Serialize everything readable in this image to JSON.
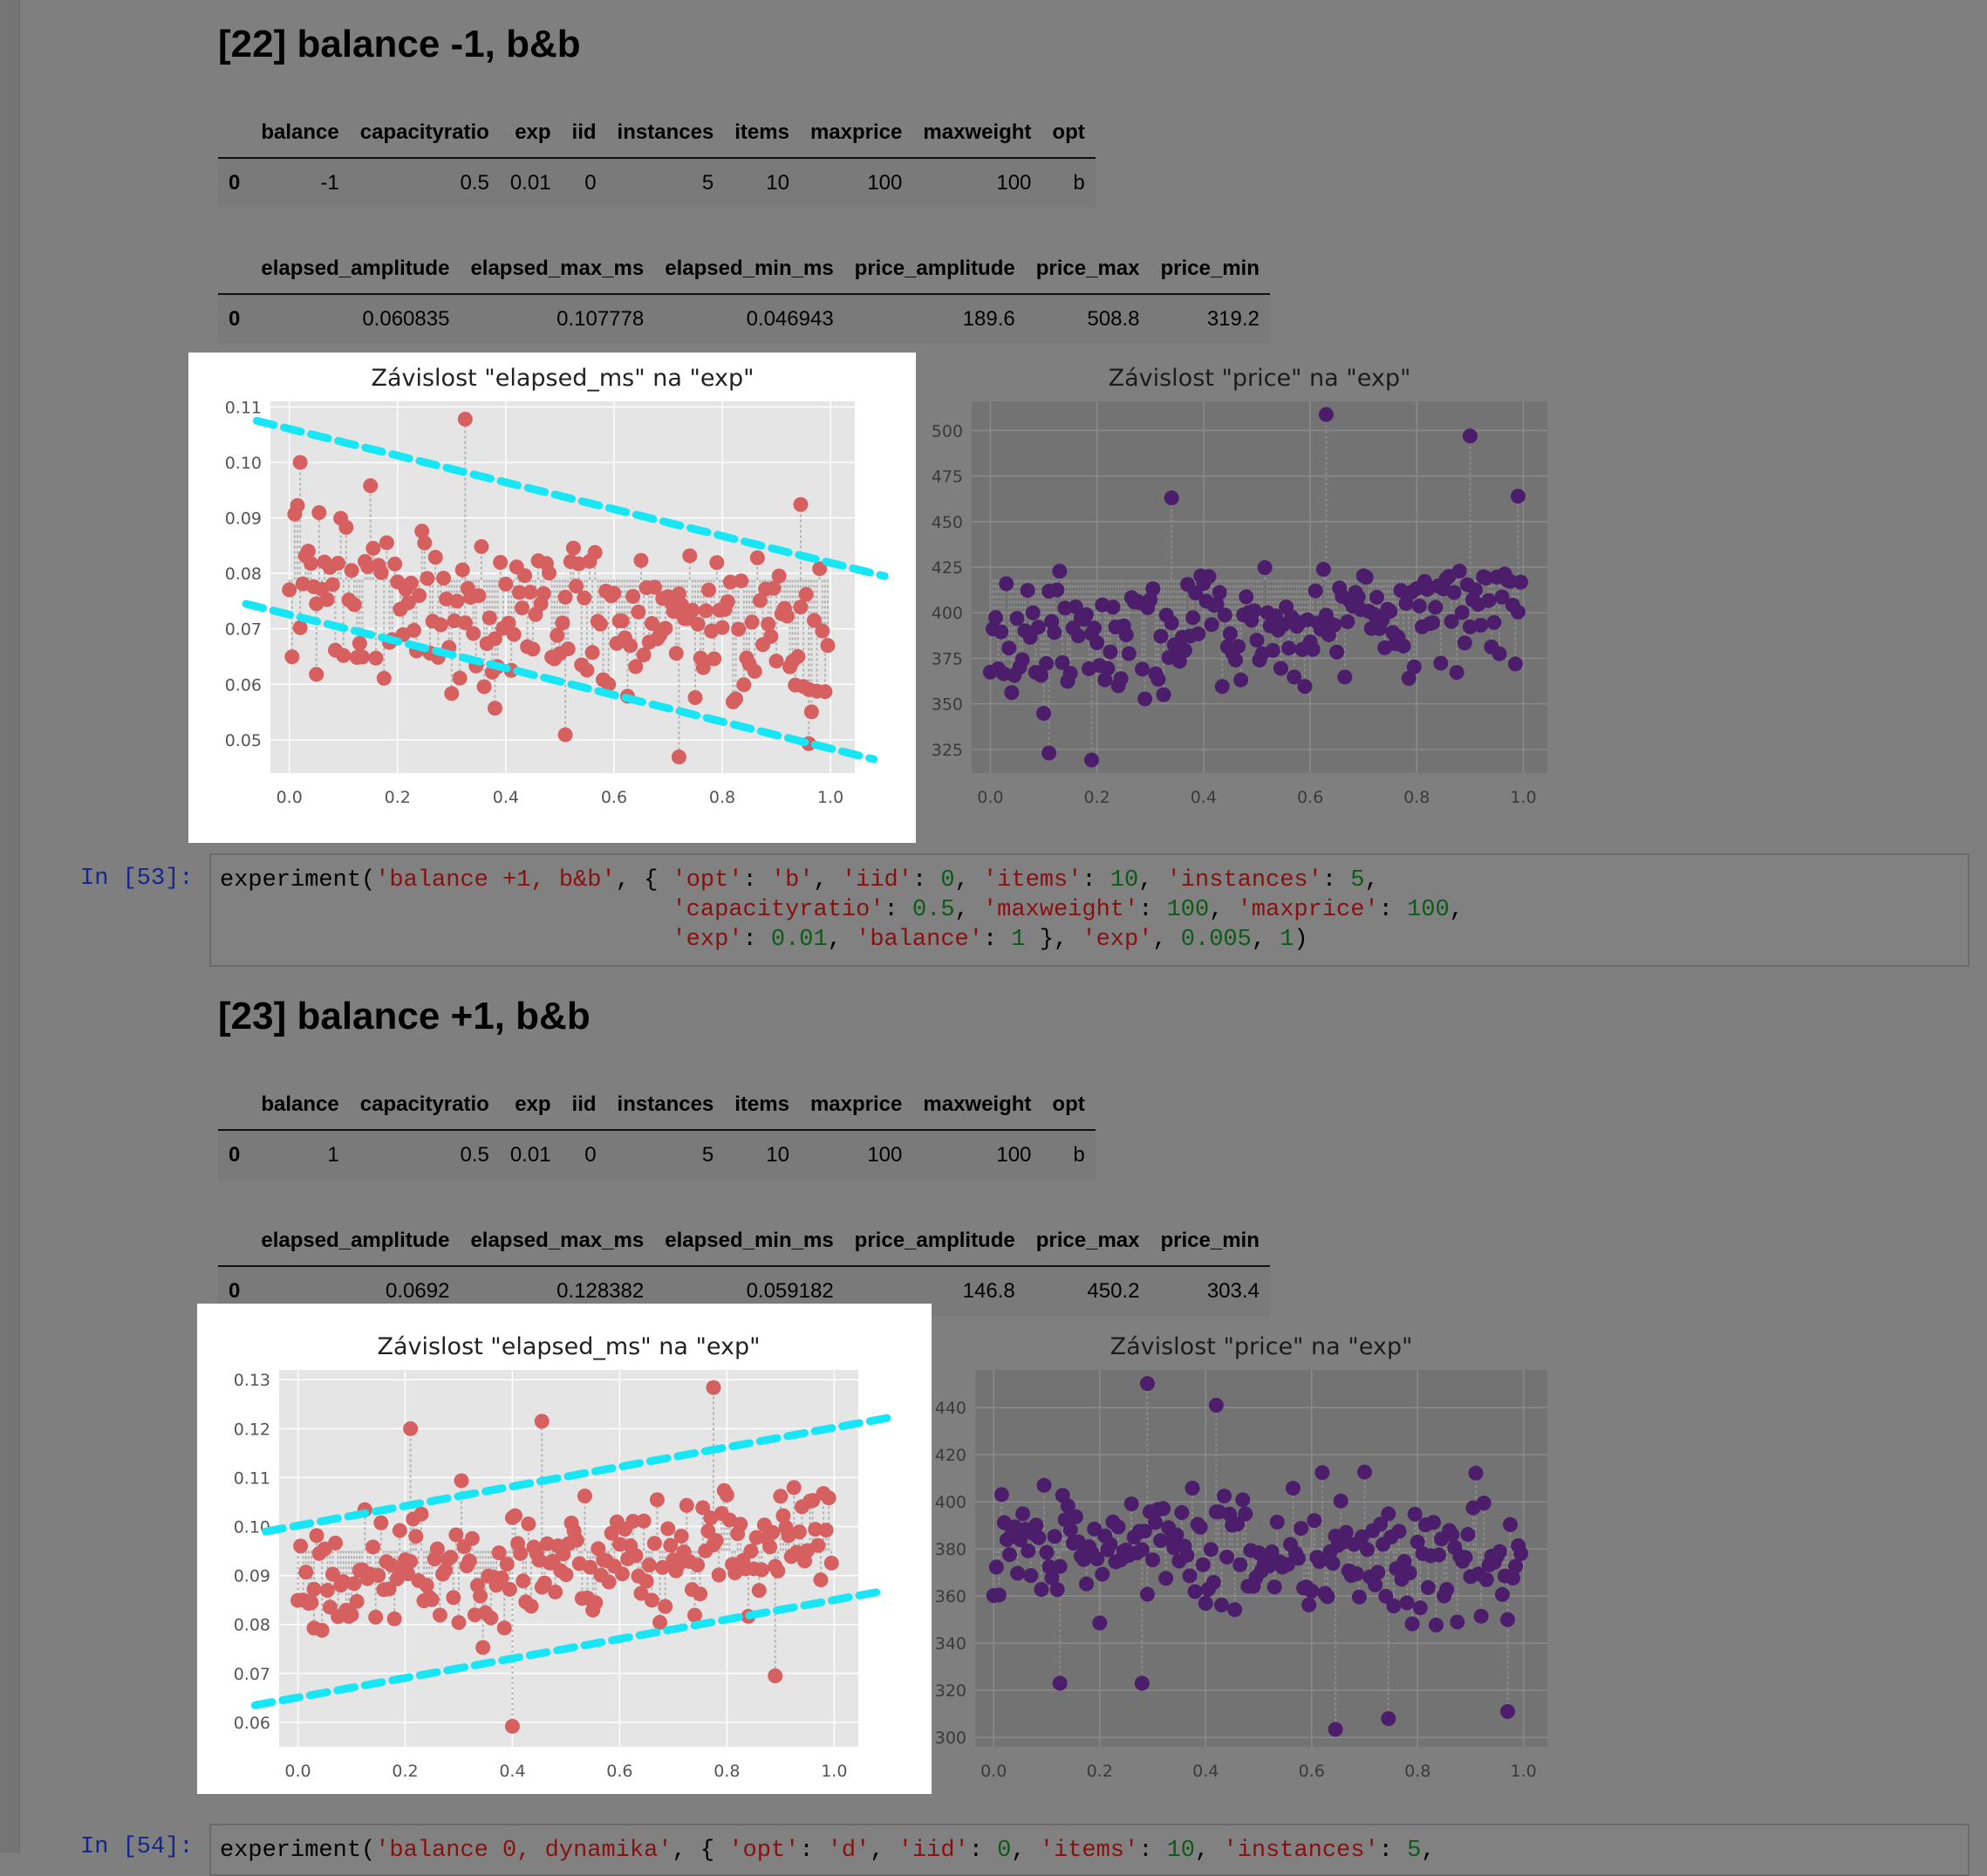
{
  "sections": [
    {
      "heading": "[22] balance -1, b&b",
      "params_table": {
        "columns": [
          "",
          "balance",
          "capacityratio",
          "exp",
          "iid",
          "instances",
          "items",
          "maxprice",
          "maxweight",
          "opt"
        ],
        "rows": [
          [
            "0",
            "-1",
            "0.5",
            "0.01",
            "0",
            "5",
            "10",
            "100",
            "100",
            "b"
          ]
        ]
      },
      "results_table": {
        "columns": [
          "",
          "elapsed_amplitude",
          "elapsed_max_ms",
          "elapsed_min_ms",
          "price_amplitude",
          "price_max",
          "price_min"
        ],
        "rows": [
          [
            "0",
            "0.060835",
            "0.107778",
            "0.046943",
            "189.6",
            "508.8",
            "319.2"
          ]
        ]
      }
    },
    {
      "heading": "[23] balance +1, b&b",
      "params_table": {
        "columns": [
          "",
          "balance",
          "capacityratio",
          "exp",
          "iid",
          "instances",
          "items",
          "maxprice",
          "maxweight",
          "opt"
        ],
        "rows": [
          [
            "0",
            "1",
            "0.5",
            "0.01",
            "0",
            "5",
            "10",
            "100",
            "100",
            "b"
          ]
        ]
      },
      "results_table": {
        "columns": [
          "",
          "elapsed_amplitude",
          "elapsed_max_ms",
          "elapsed_min_ms",
          "price_amplitude",
          "price_max",
          "price_min"
        ],
        "rows": [
          [
            "0",
            "0.0692",
            "0.128382",
            "0.059182",
            "146.8",
            "450.2",
            "303.4"
          ]
        ]
      }
    }
  ],
  "cells": [
    {
      "prompt": "In [53]:",
      "code_lines": [
        "experiment('balance +1, b&b', { 'opt': 'b', 'iid': 0, 'items': 10, 'instances': 5,",
        "                                'capacityratio': 0.5, 'maxweight': 100, 'maxprice': 100,",
        "                                'exp': 0.01, 'balance': 1 }, 'exp', 0.005, 1)"
      ]
    },
    {
      "prompt": "In [54]:",
      "code_lines": [
        "experiment('balance 0, dynamika', { 'opt': 'd', 'iid': 0, 'items': 10, 'instances': 5,"
      ]
    }
  ],
  "colors": {
    "page_background": "#7f7f7f",
    "elapsed_points": "#d65f5f",
    "price_points": "#4b1d6b",
    "trend_lines": "#16e6f6",
    "highlight_frame": "#ffffff"
  },
  "chart_data": [
    {
      "type": "scatter",
      "title": "Závislost \"elapsed_ms\" na \"exp\"",
      "xlabel": "",
      "ylabel": "",
      "xlim": [
        -0.035,
        1.045
      ],
      "ylim": [
        0.044,
        0.111
      ],
      "xticks": [
        0.0,
        0.2,
        0.4,
        0.6,
        0.8,
        1.0
      ],
      "xtick_labels": [
        "0.0",
        "0.2",
        "0.4",
        "0.6",
        "0.8",
        "1.0"
      ],
      "yticks": [
        0.05,
        0.06,
        0.07,
        0.08,
        0.09,
        0.1,
        0.11
      ],
      "ytick_labels": [
        "0.05",
        "0.06",
        "0.07",
        "0.08",
        "0.09",
        "0.10",
        "0.11"
      ],
      "grid": true,
      "stems": true,
      "color": "#d65f5f",
      "generated": {
        "seed": 22,
        "count": 200,
        "x_start": 0.0,
        "x_step": 0.005,
        "y_low": [
          0.056,
          0.048
        ],
        "y_high": [
          0.101,
          0.087
        ]
      },
      "highlights": [
        [
          0.02,
          0.1
        ],
        [
          0.325,
          0.1078
        ],
        [
          0.945,
          0.0924
        ],
        [
          0.51,
          0.0509
        ],
        [
          0.72,
          0.0469
        ],
        [
          0.38,
          0.0557
        ],
        [
          0.05,
          0.0618
        ],
        [
          0.96,
          0.0493
        ]
      ],
      "trend_lines": [
        {
          "x": [
            -0.06,
            1.1
          ],
          "y": [
            0.1075,
            0.0795
          ]
        },
        {
          "x": [
            -0.08,
            1.08
          ],
          "y": [
            0.0745,
            0.0465
          ]
        }
      ]
    },
    {
      "type": "scatter",
      "title": "Závislost \"price\" na \"exp\"",
      "xlabel": "",
      "ylabel": "",
      "xlim": [
        -0.035,
        1.045
      ],
      "ylim": [
        312,
        516
      ],
      "xticks": [
        0.0,
        0.2,
        0.4,
        0.6,
        0.8,
        1.0
      ],
      "xtick_labels": [
        "0.0",
        "0.2",
        "0.4",
        "0.6",
        "0.8",
        "1.0"
      ],
      "yticks": [
        325,
        350,
        375,
        400,
        425,
        450,
        475,
        500
      ],
      "ytick_labels": [
        "325",
        "350",
        "375",
        "400",
        "425",
        "450",
        "475",
        "500"
      ],
      "grid": true,
      "stems": true,
      "color": "#4b1d6b",
      "generated": {
        "seed": 122,
        "count": 200,
        "x_start": 0.0,
        "x_step": 0.005,
        "y_low": [
          336,
          360
        ],
        "y_high": [
          432,
          448
        ]
      },
      "highlights": [
        [
          0.63,
          508.8
        ],
        [
          0.9,
          497
        ],
        [
          0.19,
          319.2
        ],
        [
          0.11,
          323
        ],
        [
          0.34,
          463
        ],
        [
          0.99,
          464
        ]
      ]
    },
    {
      "type": "scatter",
      "title": "Závislost \"elapsed_ms\" na \"exp\"",
      "xlabel": "",
      "ylabel": "",
      "xlim": [
        -0.035,
        1.045
      ],
      "ylim": [
        0.055,
        0.132
      ],
      "xticks": [
        0.0,
        0.2,
        0.4,
        0.6,
        0.8,
        1.0
      ],
      "xtick_labels": [
        "0.0",
        "0.2",
        "0.4",
        "0.6",
        "0.8",
        "1.0"
      ],
      "yticks": [
        0.06,
        0.07,
        0.08,
        0.09,
        0.1,
        0.11,
        0.12,
        0.13
      ],
      "ytick_labels": [
        "0.06",
        "0.07",
        "0.08",
        "0.09",
        "0.10",
        "0.11",
        "0.12",
        "0.13"
      ],
      "grid": true,
      "stems": true,
      "color": "#d65f5f",
      "generated": {
        "seed": 23,
        "count": 200,
        "x_start": 0.0,
        "x_step": 0.005,
        "y_low": [
          0.07,
          0.078
        ],
        "y_high": [
          0.108,
          0.117
        ]
      },
      "highlights": [
        [
          0.775,
          0.1284
        ],
        [
          0.4,
          0.0592
        ],
        [
          0.21,
          0.12
        ],
        [
          0.455,
          0.1215
        ],
        [
          0.03,
          0.0872
        ],
        [
          0.89,
          0.0695
        ]
      ],
      "trend_lines": [
        {
          "x": [
            -0.06,
            1.1
          ],
          "y": [
            0.099,
            0.1222
          ]
        },
        {
          "x": [
            -0.08,
            1.08
          ],
          "y": [
            0.0635,
            0.0866
          ]
        }
      ]
    },
    {
      "type": "scatter",
      "title": "Závislost \"price\" na \"exp\"",
      "xlabel": "",
      "ylabel": "",
      "xlim": [
        -0.035,
        1.045
      ],
      "ylim": [
        296,
        456
      ],
      "xticks": [
        0.0,
        0.2,
        0.4,
        0.6,
        0.8,
        1.0
      ],
      "xtick_labels": [
        "0.0",
        "0.2",
        "0.4",
        "0.6",
        "0.8",
        "1.0"
      ],
      "yticks": [
        300,
        320,
        340,
        360,
        380,
        400,
        420,
        440
      ],
      "ytick_labels": [
        "300",
        "320",
        "340",
        "360",
        "380",
        "400",
        "420",
        "440"
      ],
      "grid": true,
      "stems": true,
      "color": "#4b1d6b",
      "generated": {
        "seed": 123,
        "count": 200,
        "x_start": 0.0,
        "x_step": 0.005,
        "y_low": [
          338,
          332
        ],
        "y_high": [
          426,
          418
        ]
      },
      "highlights": [
        [
          0.29,
          450.2
        ],
        [
          0.645,
          303.4
        ],
        [
          0.745,
          308
        ],
        [
          0.97,
          311
        ],
        [
          0.125,
          323
        ],
        [
          0.28,
          323
        ],
        [
          0.42,
          441
        ]
      ]
    }
  ]
}
